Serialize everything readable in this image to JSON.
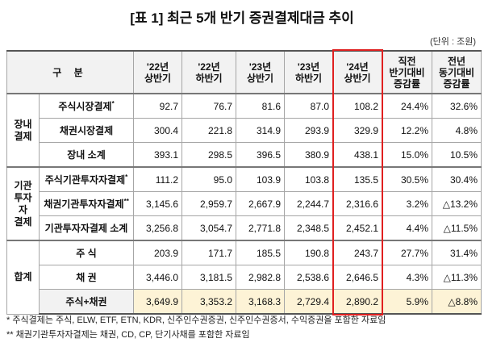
{
  "title": "[표 1] 최근 5개 반기 증권결제대금 추이",
  "unit": "(단위 : 조원)",
  "table": {
    "header": [
      [
        "구 분"
      ],
      [
        "'22년",
        "상반기"
      ],
      [
        "'22년",
        "하반기"
      ],
      [
        "'23년",
        "상반기"
      ],
      [
        "'23년",
        "하반기"
      ],
      [
        "'24년",
        "상반기"
      ],
      [
        "직전",
        "반기대비",
        "증감률"
      ],
      [
        "전년",
        "동기대비",
        "증감률"
      ]
    ],
    "groups": [
      {
        "label": [
          "장내",
          "결제"
        ],
        "rows": [
          {
            "label": "주식시장결제",
            "note": "*",
            "cells": [
              "92.7",
              "76.7",
              "81.6",
              "87.0",
              "108.2",
              "24.4%",
              "32.6%"
            ]
          },
          {
            "label": "채권시장결제",
            "cells": [
              "300.4",
              "221.8",
              "314.9",
              "293.9",
              "329.9",
              "12.2%",
              "4.8%"
            ]
          },
          {
            "label": "장내 소계",
            "cells": [
              "393.1",
              "298.5",
              "396.5",
              "380.9",
              "438.1",
              "15.0%",
              "10.5%"
            ]
          }
        ]
      },
      {
        "label": [
          "기관",
          "투자자",
          "결제"
        ],
        "rows": [
          {
            "label": "주식기관투자자결제",
            "note": "*",
            "cells": [
              "111.2",
              "95.0",
              "103.9",
              "103.8",
              "135.5",
              "30.5%",
              "30.4%"
            ]
          },
          {
            "label": "채권기관투자자결제",
            "note": "**",
            "cells": [
              "3,145.6",
              "2,959.7",
              "2,667.9",
              "2,244.7",
              "2,316.6",
              "3.2%",
              "△13.2%"
            ]
          },
          {
            "label": "기관투자자결제 소계",
            "cells": [
              "3,256.8",
              "3,054.7",
              "2,771.8",
              "2,348.5",
              "2,452.1",
              "4.4%",
              "△11.5%"
            ]
          }
        ]
      },
      {
        "label": [
          "합계"
        ],
        "rows": [
          {
            "label": "주 식",
            "cells": [
              "203.9",
              "171.7",
              "185.5",
              "190.8",
              "243.7",
              "27.7%",
              "31.4%"
            ]
          },
          {
            "label": "채 권",
            "cells": [
              "3,446.0",
              "3,181.5",
              "2,982.8",
              "2,538.6",
              "2,646.5",
              "4.3%",
              "△11.3%"
            ]
          },
          {
            "label": "주식+채권",
            "cells": [
              "3,649.9",
              "3,353.2",
              "3,168.3",
              "2,729.4",
              "2,890.2",
              "5.9%",
              "△8.8%"
            ]
          }
        ]
      }
    ]
  },
  "notes": [
    "* 주식결제는 주식, ELW, ETF, ETN, KDR, 신주인수권증권, 신주인수권증서, 수익증권을 포함한 자료임",
    "** 채권기관투자자결제는 채권, CD, CP, 단기사채를 포함한 자료임"
  ]
}
